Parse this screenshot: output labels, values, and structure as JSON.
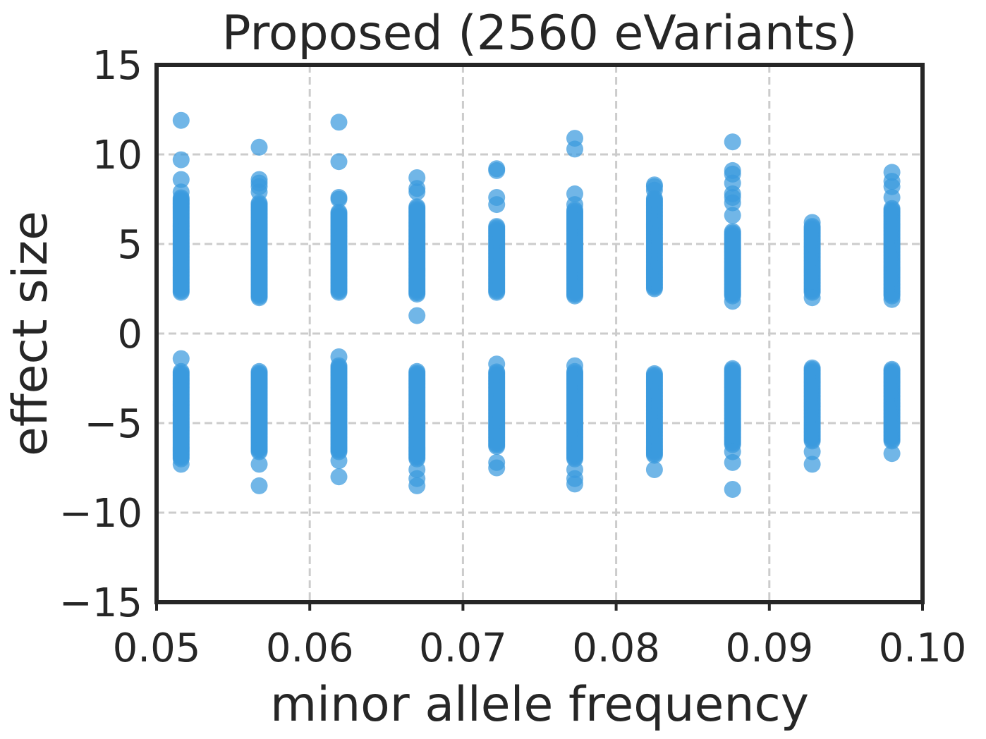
{
  "chart_data": {
    "type": "scatter",
    "title": "Proposed (2560 eVariants)",
    "xlabel": "minor allele frequency",
    "ylabel": "effect size",
    "xlim": [
      0.05,
      0.1
    ],
    "ylim": [
      -15,
      15
    ],
    "xticks": [
      "0.05",
      "0.06",
      "0.07",
      "0.08",
      "0.09",
      "0.10"
    ],
    "xtick_values": [
      0.05,
      0.06,
      0.07,
      0.08,
      0.09,
      0.1
    ],
    "yticks": [
      "15",
      "10",
      "5",
      "0",
      "−5",
      "−10",
      "−15"
    ],
    "ytick_values": [
      15,
      10,
      5,
      0,
      -5,
      -10,
      -15
    ],
    "grid": true,
    "grid_style": "dashed",
    "point_color": "#3a9ade",
    "point_opacity": 0.72,
    "columns": [
      {
        "x": 0.0516,
        "positive_range": [
          2.3,
          7.6
        ],
        "positive_outliers": [
          11.9,
          9.7,
          8.6,
          7.9
        ],
        "negative_range": [
          -7.0,
          -2.1
        ],
        "negative_outliers": [
          -1.4,
          -7.3
        ]
      },
      {
        "x": 0.0567,
        "positive_range": [
          2.0,
          7.3
        ],
        "positive_outliers": [
          10.4,
          8.6,
          8.4,
          8.2,
          7.9
        ],
        "negative_range": [
          -6.6,
          -2.1
        ],
        "negative_outliers": [
          -7.3,
          -8.5
        ]
      },
      {
        "x": 0.0619,
        "positive_range": [
          2.3,
          6.8
        ],
        "positive_outliers": [
          11.8,
          9.6,
          7.6,
          7.5
        ],
        "negative_range": [
          -6.6,
          -1.8
        ],
        "negative_outliers": [
          -1.3,
          -7.1,
          -8.0
        ]
      },
      {
        "x": 0.067,
        "positive_range": [
          2.2,
          7.1
        ],
        "positive_outliers": [
          8.7,
          8.1,
          7.9,
          1.0
        ],
        "negative_range": [
          -7.0,
          -2.1
        ],
        "negative_outliers": [
          -7.6,
          -8.1,
          -8.5
        ]
      },
      {
        "x": 0.0722,
        "positive_range": [
          2.3,
          6.0
        ],
        "positive_outliers": [
          9.2,
          9.1,
          7.6,
          7.2
        ],
        "negative_range": [
          -6.3,
          -2.1
        ],
        "negative_outliers": [
          -1.7,
          -7.2,
          -7.5
        ]
      },
      {
        "x": 0.0773,
        "positive_range": [
          2.1,
          6.9
        ],
        "positive_outliers": [
          10.9,
          10.3,
          7.8,
          7.2
        ],
        "negative_range": [
          -7.0,
          -2.1
        ],
        "negative_outliers": [
          -1.8,
          -7.6,
          -8.1,
          -8.4
        ]
      },
      {
        "x": 0.0825,
        "positive_range": [
          2.5,
          7.6
        ],
        "positive_outliers": [
          8.3,
          8.2,
          8.0
        ],
        "negative_range": [
          -6.8,
          -2.2
        ],
        "negative_outliers": [
          -7.6
        ]
      },
      {
        "x": 0.0876,
        "positive_range": [
          2.1,
          5.7
        ],
        "positive_outliers": [
          10.7,
          9.1,
          8.9,
          8.4,
          7.8,
          7.6,
          7.3,
          6.6,
          1.8
        ],
        "negative_range": [
          -6.2,
          -1.9
        ],
        "negative_outliers": [
          -6.6,
          -7.2,
          -8.7
        ]
      },
      {
        "x": 0.0928,
        "positive_range": [
          2.3,
          6.0
        ],
        "positive_outliers": [
          6.2,
          2.0
        ],
        "negative_range": [
          -6.0,
          -1.9
        ],
        "negative_outliers": [
          -6.6,
          -7.3
        ]
      },
      {
        "x": 0.098,
        "positive_range": [
          2.1,
          7.0
        ],
        "positive_outliers": [
          9.0,
          8.5,
          8.2,
          7.6,
          1.9
        ],
        "negative_range": [
          -6.0,
          -2.0
        ],
        "negative_outliers": [
          -6.7
        ]
      }
    ]
  }
}
